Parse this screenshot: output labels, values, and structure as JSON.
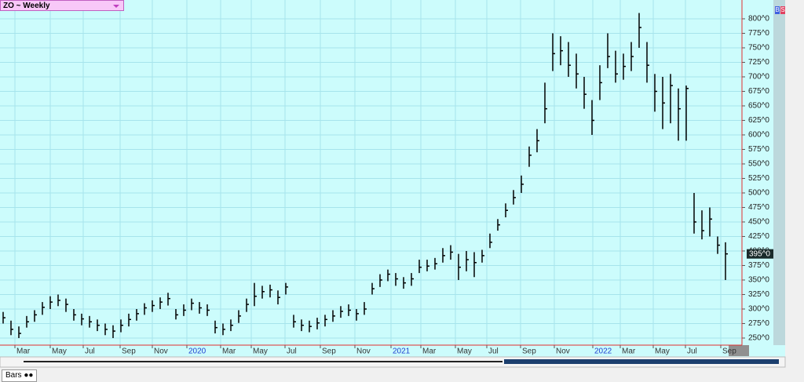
{
  "toolbar": {
    "title": "ZO ~ Weekly",
    "buttons": [
      "B",
      "S"
    ]
  },
  "footer": {
    "tab": "Bars"
  },
  "chart_data": {
    "type": "ohlc",
    "color": "#000000",
    "grid": true,
    "last_label": "395^0",
    "xlim": [
      -3.8,
      185.2
    ],
    "ylim": [
      237.8,
      832.4
    ],
    "xticks": [
      {
        "value": 0,
        "label": "Mar"
      },
      {
        "value": 9,
        "label": "May"
      },
      {
        "value": 17.4,
        "label": "Jul"
      },
      {
        "value": 26.8,
        "label": "Sep"
      },
      {
        "value": 35,
        "label": "Nov"
      },
      {
        "value": 43.8,
        "label": "2020"
      },
      {
        "value": 52.4,
        "label": "Mar"
      },
      {
        "value": 60.2,
        "label": "May"
      },
      {
        "value": 68.8,
        "label": "Jul"
      },
      {
        "value": 77.8,
        "label": "Sep"
      },
      {
        "value": 86.6,
        "label": "Nov"
      },
      {
        "value": 95.8,
        "label": "2021"
      },
      {
        "value": 103.4,
        "label": "Mar"
      },
      {
        "value": 112.2,
        "label": "May"
      },
      {
        "value": 120.2,
        "label": "Jul"
      },
      {
        "value": 128.8,
        "label": "Sep"
      },
      {
        "value": 137.4,
        "label": "Nov"
      },
      {
        "value": 147.2,
        "label": "2022"
      },
      {
        "value": 154.2,
        "label": "Mar"
      },
      {
        "value": 162.6,
        "label": "May"
      },
      {
        "value": 170.8,
        "label": "Jul"
      },
      {
        "value": 179.8,
        "label": "Sep"
      }
    ],
    "yticks": [
      {
        "value": 250,
        "label": "250^0"
      },
      {
        "value": 275,
        "label": "275^0"
      },
      {
        "value": 300,
        "label": "300^0"
      },
      {
        "value": 325,
        "label": "325^0"
      },
      {
        "value": 350,
        "label": "350^0"
      },
      {
        "value": 375,
        "label": "375^0"
      },
      {
        "value": 400,
        "label": "400^0"
      },
      {
        "value": 425,
        "label": "425^0"
      },
      {
        "value": 450,
        "label": "450^0"
      },
      {
        "value": 475,
        "label": "475^0"
      },
      {
        "value": 500,
        "label": "500^0"
      },
      {
        "value": 525,
        "label": "525^0"
      },
      {
        "value": 550,
        "label": "550^0"
      },
      {
        "value": 575,
        "label": "575^0"
      },
      {
        "value": 600,
        "label": "600^0"
      },
      {
        "value": 625,
        "label": "625^0"
      },
      {
        "value": 650,
        "label": "650^0"
      },
      {
        "value": 675,
        "label": "675^0"
      },
      {
        "value": 700,
        "label": "700^0"
      },
      {
        "value": 725,
        "label": "725^0"
      },
      {
        "value": 750,
        "label": "750^0"
      },
      {
        "value": 775,
        "label": "775^0"
      },
      {
        "value": 800,
        "label": "800^0"
      }
    ],
    "x": [
      -3,
      -1,
      1,
      3,
      5,
      7,
      9,
      11,
      13,
      15,
      17,
      19,
      21,
      23,
      25,
      27,
      29,
      31,
      33,
      35,
      37,
      39,
      41,
      43,
      45,
      47,
      49,
      51,
      53,
      55,
      57,
      59,
      61,
      63,
      65,
      67,
      69,
      71,
      73,
      75,
      77,
      79,
      81,
      83,
      85,
      87,
      89,
      91,
      93,
      95,
      97,
      99,
      101,
      103,
      105,
      107,
      109,
      111,
      113,
      115,
      117,
      119,
      121,
      123,
      125,
      127,
      129,
      131,
      133,
      135,
      137,
      139,
      141,
      143,
      145,
      147,
      149,
      151,
      153,
      155,
      157,
      159,
      161,
      163,
      165,
      167,
      169,
      171,
      173,
      175,
      177,
      179,
      181
    ],
    "high": [
      295,
      280,
      270,
      288,
      298,
      312,
      322,
      325,
      318,
      300,
      292,
      288,
      282,
      275,
      272,
      282,
      292,
      300,
      310,
      315,
      320,
      328,
      300,
      308,
      318,
      312,
      308,
      280,
      275,
      282,
      298,
      318,
      345,
      340,
      342,
      332,
      345,
      290,
      282,
      280,
      285,
      290,
      298,
      305,
      308,
      300,
      312,
      345,
      360,
      368,
      362,
      355,
      362,
      385,
      385,
      388,
      405,
      410,
      395,
      400,
      398,
      402,
      430,
      455,
      482,
      505,
      530,
      580,
      610,
      690,
      775,
      770,
      760,
      740,
      700,
      660,
      720,
      775,
      745,
      740,
      760,
      810,
      760,
      705,
      700,
      705,
      680,
      685,
      500,
      470,
      475,
      425,
      415
    ],
    "low": [
      275,
      255,
      250,
      268,
      278,
      290,
      300,
      305,
      295,
      280,
      272,
      268,
      262,
      255,
      250,
      260,
      270,
      280,
      290,
      295,
      300,
      306,
      282,
      288,
      298,
      292,
      288,
      258,
      255,
      262,
      276,
      295,
      305,
      318,
      320,
      308,
      325,
      268,
      262,
      260,
      265,
      270,
      278,
      285,
      288,
      280,
      290,
      325,
      338,
      348,
      340,
      335,
      340,
      362,
      365,
      368,
      380,
      385,
      350,
      365,
      355,
      380,
      405,
      435,
      458,
      480,
      500,
      545,
      570,
      620,
      710,
      720,
      700,
      680,
      645,
      600,
      660,
      715,
      690,
      695,
      710,
      750,
      690,
      640,
      610,
      620,
      590,
      590,
      430,
      420,
      425,
      395,
      350
    ],
    "close": [
      285,
      265,
      258,
      278,
      290,
      303,
      312,
      315,
      308,
      290,
      283,
      278,
      272,
      265,
      262,
      272,
      282,
      292,
      302,
      306,
      312,
      318,
      290,
      298,
      310,
      302,
      298,
      268,
      265,
      272,
      288,
      308,
      322,
      330,
      333,
      320,
      338,
      278,
      272,
      270,
      276,
      282,
      288,
      296,
      298,
      292,
      300,
      335,
      350,
      360,
      352,
      345,
      352,
      372,
      374,
      378,
      392,
      398,
      372,
      385,
      380,
      392,
      415,
      445,
      470,
      492,
      515,
      565,
      590,
      645,
      740,
      745,
      720,
      705,
      670,
      625,
      690,
      735,
      705,
      718,
      735,
      785,
      720,
      675,
      655,
      685,
      645,
      680,
      450,
      435,
      455,
      410,
      395
    ]
  }
}
